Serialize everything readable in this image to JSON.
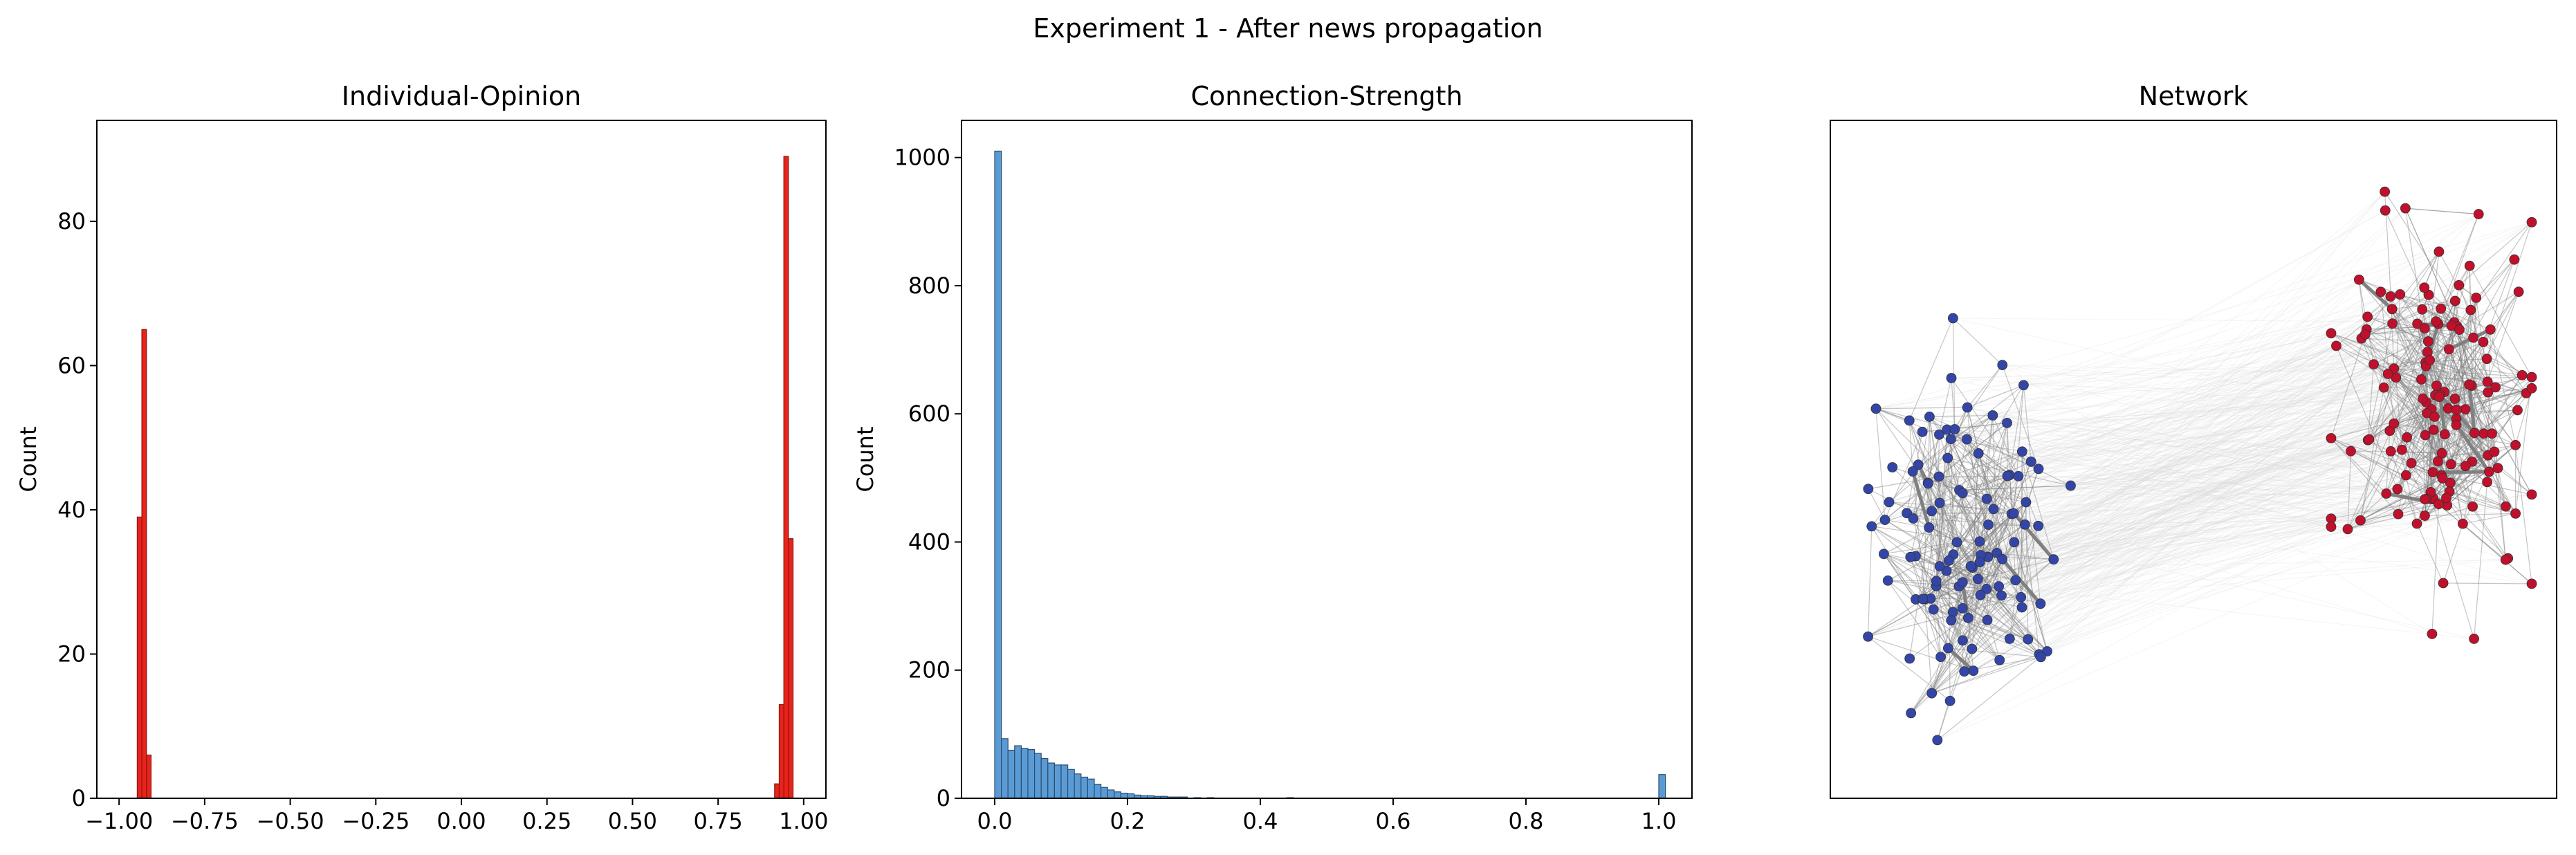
{
  "figure": {
    "suptitle": "Experiment 1 - After news propagation"
  },
  "chart_data": [
    {
      "type": "bar",
      "title": "Individual-Opinion",
      "xlabel": "",
      "ylabel": "Count",
      "xlim": [
        -1.065,
        1.065
      ],
      "ylim": [
        0,
        94
      ],
      "xticks": [
        -1.0,
        -0.75,
        -0.5,
        -0.25,
        0.0,
        0.25,
        0.5,
        0.75,
        1.0
      ],
      "xtick_labels": [
        "−1.00",
        "−0.75",
        "−0.50",
        "−0.25",
        "0.00",
        "0.25",
        "0.50",
        "0.75",
        "1.00"
      ],
      "yticks": [
        0,
        20,
        40,
        60,
        80
      ],
      "ytick_labels": [
        "0",
        "20",
        "40",
        "60",
        "80"
      ],
      "color": "#e8231c",
      "edgecolor": "#8b1a10",
      "bin_width": 0.0135,
      "bins": [
        {
          "x": -0.947,
          "count": 39
        },
        {
          "x": -0.9335,
          "count": 65
        },
        {
          "x": -0.92,
          "count": 6
        },
        {
          "x": 0.915,
          "count": 2
        },
        {
          "x": 0.9285,
          "count": 13
        },
        {
          "x": 0.942,
          "count": 89
        },
        {
          "x": 0.9555,
          "count": 36
        }
      ]
    },
    {
      "type": "bar",
      "title": "Connection-Strength",
      "xlabel": "",
      "ylabel": "Count",
      "xlim": [
        -0.05,
        1.05
      ],
      "ylim": [
        0,
        1058
      ],
      "xticks": [
        0.0,
        0.2,
        0.4,
        0.6,
        0.8,
        1.0
      ],
      "xtick_labels": [
        "0.0",
        "0.2",
        "0.4",
        "0.6",
        "0.8",
        "1.0"
      ],
      "yticks": [
        0,
        200,
        400,
        600,
        800,
        1000
      ],
      "ytick_labels": [
        "0",
        "200",
        "400",
        "600",
        "800",
        "1000"
      ],
      "color": "#5b9bd5",
      "edgecolor": "#2b4f70",
      "bin_width": 0.01,
      "bins": [
        {
          "x": 0.0,
          "count": 1010
        },
        {
          "x": 0.01,
          "count": 93
        },
        {
          "x": 0.02,
          "count": 75
        },
        {
          "x": 0.03,
          "count": 82
        },
        {
          "x": 0.04,
          "count": 78
        },
        {
          "x": 0.05,
          "count": 76
        },
        {
          "x": 0.06,
          "count": 70
        },
        {
          "x": 0.07,
          "count": 62
        },
        {
          "x": 0.08,
          "count": 55
        },
        {
          "x": 0.09,
          "count": 52
        },
        {
          "x": 0.1,
          "count": 52
        },
        {
          "x": 0.11,
          "count": 45
        },
        {
          "x": 0.12,
          "count": 38
        },
        {
          "x": 0.13,
          "count": 33
        },
        {
          "x": 0.14,
          "count": 30
        },
        {
          "x": 0.15,
          "count": 22
        },
        {
          "x": 0.16,
          "count": 17
        },
        {
          "x": 0.17,
          "count": 13
        },
        {
          "x": 0.18,
          "count": 10
        },
        {
          "x": 0.19,
          "count": 8
        },
        {
          "x": 0.2,
          "count": 7
        },
        {
          "x": 0.21,
          "count": 5
        },
        {
          "x": 0.22,
          "count": 4
        },
        {
          "x": 0.23,
          "count": 4
        },
        {
          "x": 0.24,
          "count": 3
        },
        {
          "x": 0.25,
          "count": 3
        },
        {
          "x": 0.26,
          "count": 2
        },
        {
          "x": 0.27,
          "count": 2
        },
        {
          "x": 0.28,
          "count": 2
        },
        {
          "x": 0.3,
          "count": 1
        },
        {
          "x": 0.32,
          "count": 1
        },
        {
          "x": 0.44,
          "count": 1
        },
        {
          "x": 1.0,
          "count": 37
        }
      ]
    },
    {
      "type": "network",
      "title": "Network",
      "groups": [
        {
          "color": "#3346a8",
          "node_count": 110
        },
        {
          "color": "#c0102c",
          "node_count": 140
        }
      ],
      "edge_color": "#808080"
    }
  ]
}
